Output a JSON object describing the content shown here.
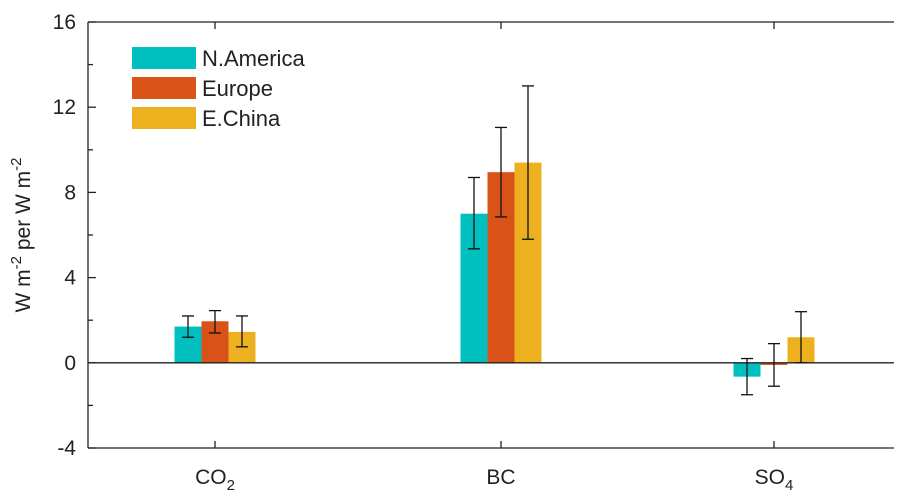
{
  "chart_data": {
    "type": "bar",
    "categories": [
      {
        "base": "CO",
        "sub": "2"
      },
      {
        "base": "BC",
        "sub": ""
      },
      {
        "base": "SO",
        "sub": "4"
      }
    ],
    "series": [
      {
        "name": "N.America",
        "color": "#00BFBF",
        "values": [
          1.7,
          7.0,
          -0.65
        ],
        "err_low": [
          1.2,
          5.35,
          -1.5
        ],
        "err_high": [
          2.2,
          8.7,
          0.2
        ]
      },
      {
        "name": "Europe",
        "color": "#D95319",
        "values": [
          1.95,
          8.95,
          -0.1
        ],
        "err_low": [
          1.4,
          6.85,
          -1.1
        ],
        "err_high": [
          2.45,
          11.05,
          0.9
        ]
      },
      {
        "name": "E.China",
        "color": "#EDB120",
        "values": [
          1.45,
          9.4,
          1.2
        ],
        "err_low": [
          0.75,
          5.8,
          0.0
        ],
        "err_high": [
          2.2,
          13.0,
          2.4
        ]
      }
    ],
    "ylabel": {
      "parts": [
        "W m",
        "-2",
        " per W m",
        "-2"
      ]
    },
    "ylim": [
      -4,
      16
    ],
    "yticks": [
      -4,
      0,
      4,
      8,
      12,
      16
    ],
    "legend_position": "top-left",
    "grid": false,
    "zero_line": true
  }
}
